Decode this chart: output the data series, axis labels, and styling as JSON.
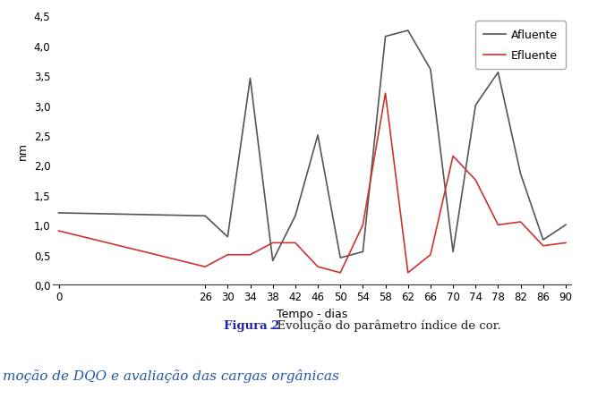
{
  "x_ticks": [
    0,
    26,
    30,
    34,
    38,
    42,
    46,
    50,
    54,
    58,
    62,
    66,
    70,
    74,
    78,
    82,
    86,
    90
  ],
  "afluente_x": [
    0,
    26,
    30,
    34,
    38,
    42,
    46,
    50,
    54,
    58,
    62,
    66,
    70,
    74,
    78,
    82,
    86,
    90
  ],
  "afluente_y": [
    1.2,
    1.15,
    0.8,
    3.45,
    0.4,
    1.15,
    2.5,
    0.45,
    0.55,
    4.15,
    4.25,
    3.6,
    0.55,
    3.0,
    3.55,
    1.85,
    0.75,
    1.0
  ],
  "efluente_x": [
    0,
    26,
    30,
    34,
    38,
    42,
    46,
    50,
    54,
    58,
    62,
    66,
    70,
    74,
    78,
    82,
    86,
    90
  ],
  "efluente_y": [
    0.9,
    0.3,
    0.5,
    0.5,
    0.7,
    0.7,
    0.3,
    0.2,
    1.0,
    3.2,
    0.2,
    0.5,
    2.15,
    1.75,
    1.0,
    1.05,
    0.65,
    0.7
  ],
  "afluente_color": "#555555",
  "efluente_color": "#cc3333",
  "xlabel": "Tempo - dias",
  "ylabel": "nm",
  "ylim": [
    0,
    4.5
  ],
  "ytick_labels": [
    "0,0",
    "0,5",
    "1,0",
    "1,5",
    "2,0",
    "2,5",
    "3,0",
    "3,5",
    "4,0",
    "4,5"
  ],
  "ytick_values": [
    0.0,
    0.5,
    1.0,
    1.5,
    2.0,
    2.5,
    3.0,
    3.5,
    4.0,
    4.5
  ],
  "legend_afluente": "Afluente",
  "legend_efluente": "Efluente",
  "caption_bold": "Figura 2",
  "caption_normal": ". Evolução do parâmetro índice de cor.",
  "bottom_text": "moção de DQO e avaliação das cargas orgânicas",
  "bg_color": "#ffffff",
  "plot_bg_color": "#ffffff",
  "line_width": 1.2,
  "font_size_ticks": 8.5,
  "font_size_labels": 9,
  "font_size_legend": 9,
  "font_size_caption": 9.5,
  "font_size_bottom": 11,
  "blue_patch_color": "#b8cfe0"
}
